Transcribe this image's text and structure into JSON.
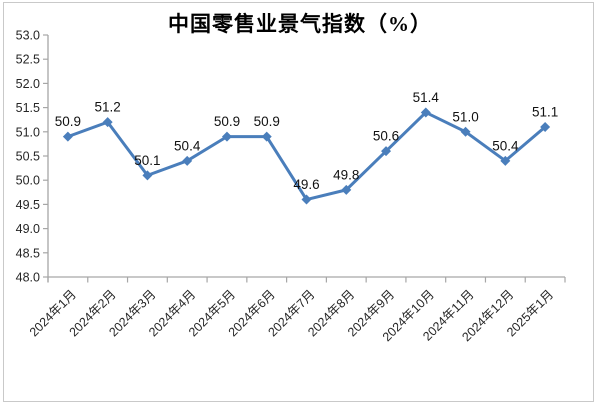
{
  "chart_data": {
    "type": "line",
    "title": "中国零售业景气指数（%）",
    "categories": [
      "2024年1月",
      "2024年2月",
      "2024年3月",
      "2024年4月",
      "2024年5月",
      "2024年6月",
      "2024年7月",
      "2024年8月",
      "2024年9月",
      "2024年10月",
      "2024年11月",
      "2024年12月",
      "2025年1月"
    ],
    "values": [
      50.9,
      51.2,
      50.1,
      50.4,
      50.9,
      50.9,
      49.6,
      49.8,
      50.6,
      51.4,
      51.0,
      50.4,
      51.1
    ],
    "xlabel": "",
    "ylabel": "",
    "ylim": [
      48.0,
      53.0
    ],
    "ytick_step": 0.5,
    "grid": false,
    "legend_position": "none",
    "data_labels": true,
    "marker": "diamond",
    "colors": {
      "line": "#4a7ebb",
      "marker": "#4a7ebb",
      "axis": "#a6a6a6",
      "tick_label": "#262626",
      "data_label": "#111111",
      "title": "#000000",
      "frame": "#c9c9c9",
      "background": "#ffffff"
    }
  }
}
